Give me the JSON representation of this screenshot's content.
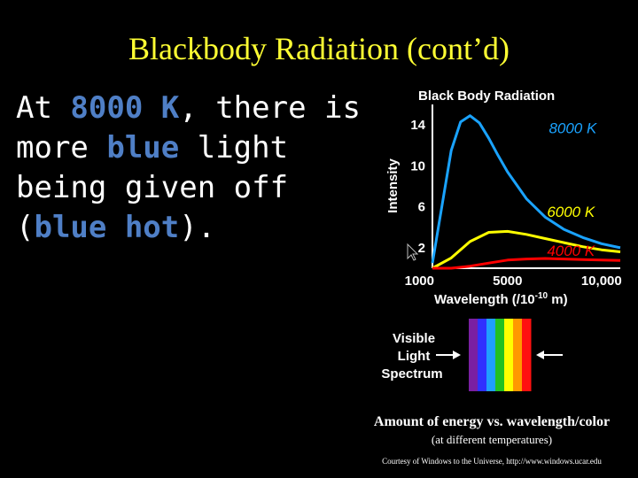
{
  "slide": {
    "title": "Blackbody Radiation (cont’d)",
    "text_part1": "At ",
    "text_highlight1": "8000 K",
    "text_part2": ", there is more ",
    "text_highlight2": "blue",
    "text_part3": " light being given off (",
    "text_highlight3": "blue hot",
    "text_part4": ")."
  },
  "chart_data": {
    "type": "line",
    "title": "Black Body Radiation",
    "ylabel": "Intensity",
    "xlabel": "Wavelength (/10",
    "xlabel_exp": "-10",
    "xlabel_unit": " m)",
    "yticks": [
      "2",
      "6",
      "10",
      "14"
    ],
    "xticks": [
      "1000",
      "5000",
      "10,000"
    ],
    "xlim": [
      1000,
      11000
    ],
    "ylim": [
      0,
      16
    ],
    "series": [
      {
        "name": "8000 K",
        "color": "#1aa3ff",
        "x": [
          1000,
          1500,
          2000,
          2500,
          3000,
          3500,
          4000,
          4500,
          5000,
          6000,
          7000,
          8000,
          9000,
          10000,
          11000
        ],
        "y": [
          0.5,
          6,
          11.5,
          14.3,
          14.9,
          14.2,
          12.7,
          11,
          9.4,
          6.8,
          5,
          3.8,
          3,
          2.4,
          2
        ]
      },
      {
        "name": "6000 K",
        "color": "#ffff00",
        "x": [
          1000,
          2000,
          3000,
          4000,
          5000,
          6000,
          7000,
          8000,
          9000,
          10000,
          11000
        ],
        "y": [
          0,
          1,
          2.6,
          3.5,
          3.6,
          3.3,
          2.9,
          2.5,
          2.1,
          1.8,
          1.6
        ]
      },
      {
        "name": "4000 K",
        "color": "#ff0000",
        "x": [
          1000,
          2000,
          3000,
          4000,
          5000,
          6000,
          7000,
          8000,
          9000,
          10000,
          11000
        ],
        "y": [
          0,
          0,
          0.2,
          0.5,
          0.8,
          0.9,
          0.95,
          0.9,
          0.85,
          0.8,
          0.75
        ]
      }
    ],
    "spectrum": {
      "label_lines": [
        "Visible",
        "Light",
        "Spectrum"
      ],
      "colors": [
        "#7a1fa2",
        "#3030ff",
        "#1f9fff",
        "#22c022",
        "#ffff00",
        "#ff9900",
        "#ff1010"
      ]
    }
  },
  "caption": {
    "main": "Amount of energy vs. wavelength/color",
    "sub": "(at different temperatures)",
    "credit": "Courtesy of Windows to the Universe, http://www.windows.ucar.edu"
  }
}
